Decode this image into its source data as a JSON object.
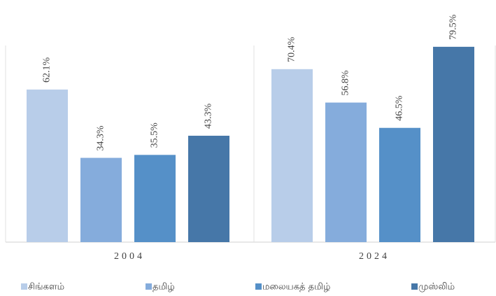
{
  "chart_data": {
    "type": "bar",
    "categories": [
      "2004",
      "2024"
    ],
    "series": [
      {
        "name": "சிங்களம்",
        "color": "#b8cde9",
        "values": [
          62.1,
          70.4
        ],
        "value_labels": [
          "62.1%",
          "70.4%"
        ]
      },
      {
        "name": "தமிழ்",
        "color": "#85acdc",
        "values": [
          34.3,
          56.8
        ],
        "value_labels": [
          "34.3%",
          "56.8%"
        ]
      },
      {
        "name": "மலையகத் தமிழ்",
        "color": "#5590c8",
        "values": [
          35.5,
          46.5
        ],
        "value_labels": [
          "35.5%",
          "46.5%"
        ]
      },
      {
        "name": "முஸ்லிம்",
        "color": "#4677a8",
        "values": [
          43.3,
          79.5
        ],
        "value_labels": [
          "43.3%",
          "79.5%"
        ]
      }
    ],
    "ylim": [
      0,
      90
    ],
    "legend": "bottom"
  }
}
